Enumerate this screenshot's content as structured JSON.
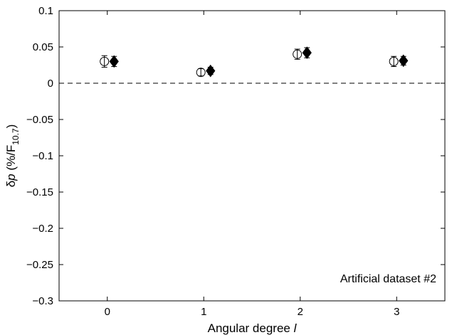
{
  "chart_data": {
    "type": "scatter",
    "xlabel_text": "Angular degree ",
    "xlabel_var": "l",
    "ylabel": {
      "delta": "δ",
      "var": "p",
      "unit_pre": " (%/F",
      "unit_sub": "10.7",
      "unit_post": ")"
    },
    "xlim": [
      -0.5,
      3.5
    ],
    "ylim": [
      -0.3,
      0.1
    ],
    "xticks": [
      0,
      1,
      2,
      3
    ],
    "yticks": [
      0.1,
      0.05,
      0,
      -0.05,
      -0.1,
      -0.15,
      -0.2,
      -0.25,
      -0.3
    ],
    "ytick_labels": [
      "0.1",
      "0.05",
      "0",
      "−0.05",
      "−0.1",
      "−0.15",
      "−0.2",
      "−0.25",
      "−0.3"
    ],
    "grid": false,
    "reference_line": {
      "y": 0,
      "style": "dashed"
    },
    "annotation": "Artificial dataset #2",
    "series": [
      {
        "marker": "open-circle",
        "color": "#000000",
        "points": [
          {
            "x": -0.03,
            "y": 0.03,
            "err": 0.008
          },
          {
            "x": 0.97,
            "y": 0.015,
            "err": 0.005
          },
          {
            "x": 1.97,
            "y": 0.04,
            "err": 0.007
          },
          {
            "x": 2.97,
            "y": 0.03,
            "err": 0.007
          }
        ]
      },
      {
        "marker": "filled-diamond",
        "color": "#000000",
        "points": [
          {
            "x": 0.07,
            "y": 0.03,
            "err": 0.007
          },
          {
            "x": 1.07,
            "y": 0.017,
            "err": 0.005
          },
          {
            "x": 2.07,
            "y": 0.042,
            "err": 0.007
          },
          {
            "x": 3.07,
            "y": 0.031,
            "err": 0.006
          }
        ]
      }
    ]
  }
}
